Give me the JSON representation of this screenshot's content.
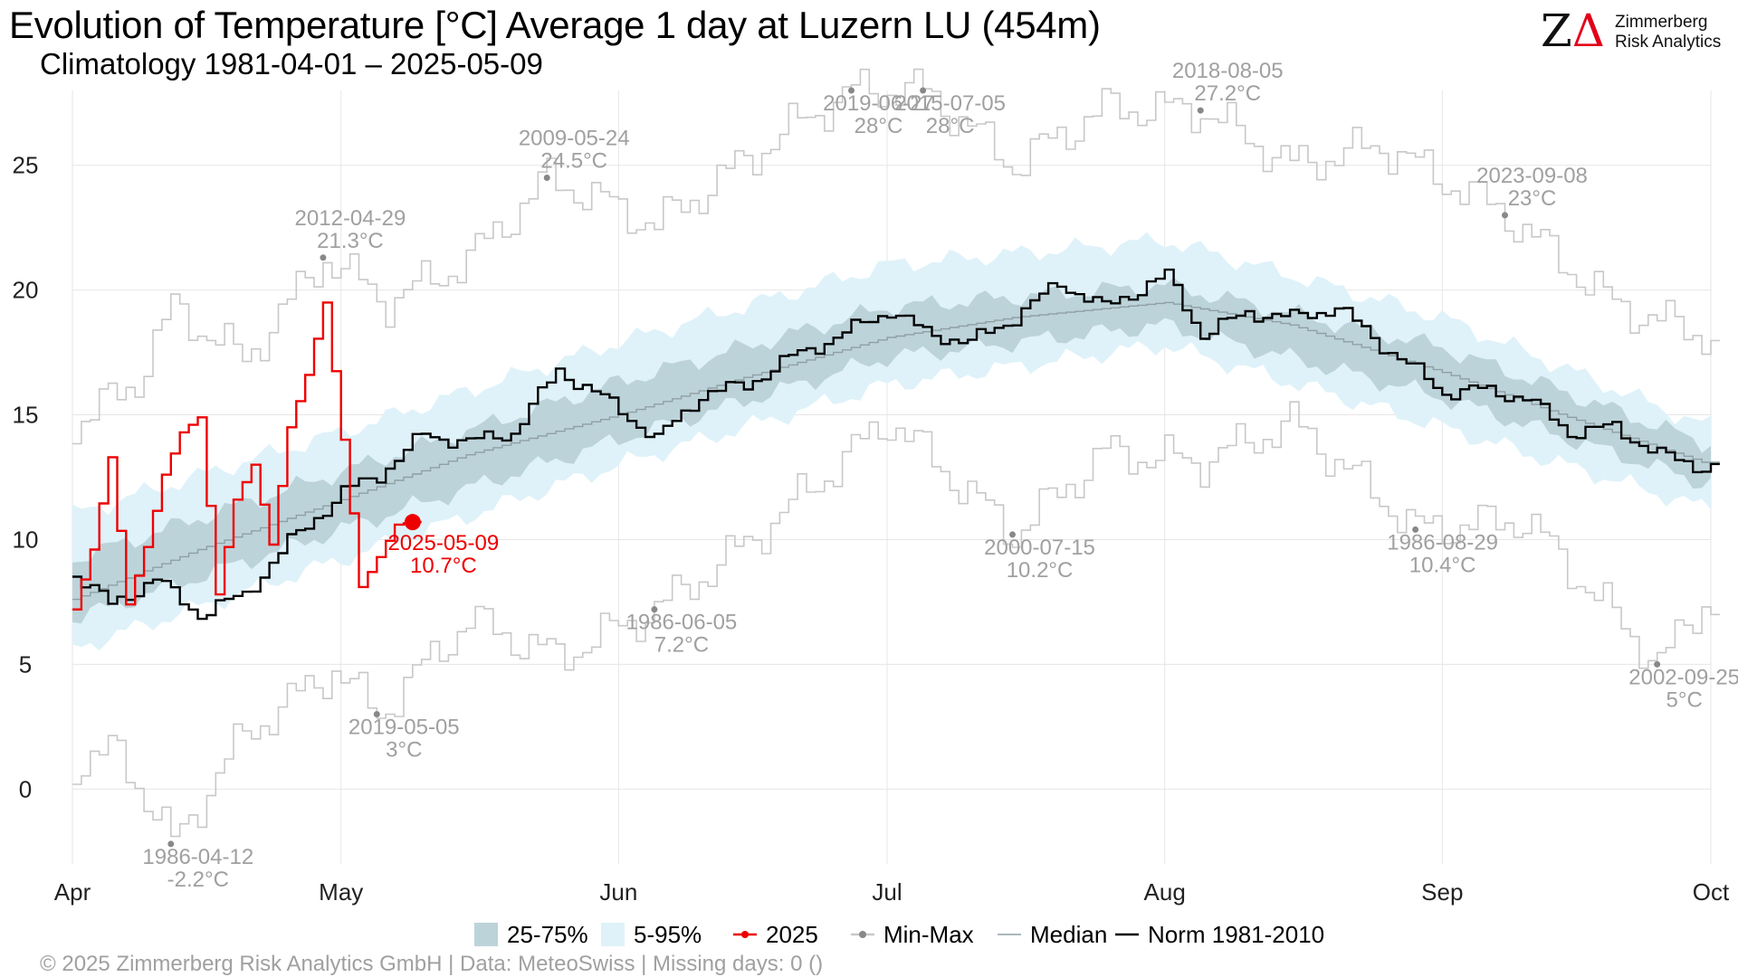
{
  "header": {
    "title": "Evolution of Temperature [°C] Average 1 day at Luzern  LU (454m)",
    "subtitle": "Climatology 1981-04-01 – 2025-05-09"
  },
  "logo": {
    "line1": "Zimmerberg",
    "line2": "Risk Analytics"
  },
  "footer": "©  2025 Zimmerberg Risk Analytics GmbH | Data: MeteoSwiss | Missing days: 0 ()",
  "legend": [
    {
      "key": "band50",
      "label": "25-75%"
    },
    {
      "key": "band90",
      "label": "5-95%"
    },
    {
      "key": "current",
      "label": "2025"
    },
    {
      "key": "minmax",
      "label": "Min-Max"
    },
    {
      "key": "median",
      "label": "Median"
    },
    {
      "key": "norm",
      "label": "Norm 1981-2010"
    }
  ],
  "colors": {
    "band50": "#bdd3da",
    "band90": "#dff2f9",
    "current": "#ee0000",
    "minmax": "#c8c8c8",
    "median": "#8fa0a4",
    "norm": "#000000",
    "annotation": "#a0a0a0",
    "grid": "#e6e6e6"
  },
  "chart_data": {
    "type": "line",
    "x_start": "2025-04-01",
    "xlim": [
      "2025-04-01",
      "2025-09-30"
    ],
    "ylim": [
      -3,
      28
    ],
    "y_ticks": [
      0,
      5,
      10,
      15,
      20,
      25
    ],
    "x_ticks": [
      {
        "date": "2025-04-01",
        "label": "Apr"
      },
      {
        "date": "2025-05-01",
        "label": "May"
      },
      {
        "date": "2025-06-01",
        "label": "Jun"
      },
      {
        "date": "2025-07-01",
        "label": "Jul"
      },
      {
        "date": "2025-08-01",
        "label": "Aug"
      },
      {
        "date": "2025-09-01",
        "label": "Sep"
      },
      {
        "date": "2025-10-01",
        "label": "Oct"
      }
    ],
    "series": [
      {
        "name": "Median",
        "x": [
          "2025-04-01",
          "2025-04-15",
          "2025-05-01",
          "2025-05-15",
          "2025-06-01",
          "2025-06-15",
          "2025-07-01",
          "2025-07-15",
          "2025-08-01",
          "2025-08-15",
          "2025-09-01",
          "2025-09-15",
          "2025-09-30"
        ],
        "y": [
          7.6,
          9.6,
          11.6,
          13.4,
          15.0,
          16.5,
          18.1,
          18.9,
          19.5,
          18.6,
          16.7,
          14.9,
          13.1
        ]
      },
      {
        "name": "Norm 1981-2010",
        "x": [
          "2025-04-01",
          "2025-04-05",
          "2025-04-10",
          "2025-04-15",
          "2025-04-20",
          "2025-04-25",
          "2025-05-01",
          "2025-05-05",
          "2025-05-10",
          "2025-05-15",
          "2025-05-20",
          "2025-05-25",
          "2025-06-01",
          "2025-06-05",
          "2025-06-10",
          "2025-06-15",
          "2025-06-20",
          "2025-06-25",
          "2025-07-01",
          "2025-07-05",
          "2025-07-10",
          "2025-07-15",
          "2025-07-20",
          "2025-07-25",
          "2025-08-01",
          "2025-08-05",
          "2025-08-10",
          "2025-08-15",
          "2025-08-20",
          "2025-08-25",
          "2025-09-01",
          "2025-09-05",
          "2025-09-10",
          "2025-09-15",
          "2025-09-20",
          "2025-09-25",
          "2025-09-30"
        ],
        "y": [
          8.6,
          7.4,
          8.4,
          7.0,
          7.8,
          9.9,
          11.9,
          12.6,
          14.2,
          13.9,
          14.3,
          16.8,
          15.2,
          14.0,
          15.8,
          16.2,
          17.3,
          18.1,
          19.2,
          18.3,
          17.9,
          18.9,
          20.3,
          19.3,
          20.6,
          18.2,
          19.1,
          18.9,
          19.3,
          17.8,
          15.9,
          16.0,
          15.7,
          14.3,
          14.5,
          13.4,
          12.9
        ]
      },
      {
        "name": "2025",
        "x": [
          "2025-04-01",
          "2025-04-03",
          "2025-04-05",
          "2025-04-07",
          "2025-04-09",
          "2025-04-11",
          "2025-04-13",
          "2025-04-15",
          "2025-04-17",
          "2025-04-19",
          "2025-04-21",
          "2025-04-23",
          "2025-04-25",
          "2025-04-27",
          "2025-04-29",
          "2025-05-01",
          "2025-05-03",
          "2025-05-05",
          "2025-05-07",
          "2025-05-09"
        ],
        "y": [
          7.2,
          9.6,
          13.3,
          7.4,
          9.7,
          12.6,
          14.3,
          14.9,
          7.8,
          11.6,
          13.0,
          9.8,
          14.5,
          16.6,
          19.5,
          14.0,
          8.1,
          9.3,
          10.6,
          10.7
        ]
      }
    ],
    "bands": [
      {
        "name": "5-95%",
        "x": [
          "2025-04-01",
          "2025-05-01",
          "2025-06-01",
          "2025-07-01",
          "2025-08-01",
          "2025-09-01",
          "2025-09-30"
        ],
        "low": [
          5.6,
          9.2,
          13.0,
          16.2,
          17.8,
          14.5,
          11.3
        ],
        "high": [
          11.0,
          14.3,
          17.9,
          21.0,
          22.0,
          18.9,
          14.6
        ]
      },
      {
        "name": "25-75%",
        "x": [
          "2025-04-01",
          "2025-05-01",
          "2025-06-01",
          "2025-07-01",
          "2025-08-01",
          "2025-09-01",
          "2025-09-30"
        ],
        "low": [
          6.8,
          10.4,
          14.0,
          17.3,
          18.6,
          15.7,
          12.3
        ],
        "high": [
          9.2,
          12.7,
          16.3,
          19.3,
          20.2,
          17.7,
          13.9
        ]
      }
    ],
    "minmax": {
      "max_x": [
        "2025-04-01",
        "2025-04-08",
        "2025-04-12",
        "2025-04-20",
        "2025-04-29",
        "2025-05-06",
        "2025-05-15",
        "2025-05-24",
        "2025-06-05",
        "2025-06-20",
        "2025-06-27",
        "2025-07-05",
        "2025-07-15",
        "2025-07-25",
        "2025-08-05",
        "2025-08-15",
        "2025-08-25",
        "2025-09-08",
        "2025-09-20",
        "2025-09-30"
      ],
      "max_y": [
        14.5,
        16.4,
        19.3,
        17.2,
        21.3,
        19.5,
        21.2,
        24.5,
        22.6,
        26.5,
        28.0,
        28.0,
        25.0,
        27.3,
        27.2,
        25.0,
        25.8,
        23.0,
        19.4,
        18.2
      ],
      "min_x": [
        "2025-04-01",
        "2025-04-06",
        "2025-04-12",
        "2025-04-20",
        "2025-04-30",
        "2025-05-05",
        "2025-05-15",
        "2025-05-25",
        "2025-06-05",
        "2025-06-15",
        "2025-07-01",
        "2025-07-15",
        "2025-07-25",
        "2025-08-05",
        "2025-08-15",
        "2025-08-29",
        "2025-09-10",
        "2025-09-25",
        "2025-09-30"
      ],
      "min_y": [
        1.0,
        1.5,
        -2.2,
        2.2,
        4.8,
        3.0,
        6.8,
        5.3,
        7.2,
        9.8,
        14.8,
        10.2,
        13.5,
        13.1,
        14.7,
        10.4,
        10.8,
        5.0,
        7.5
      ]
    },
    "current_point": {
      "x": "2025-05-09",
      "y": 10.7,
      "date_label": "2025-05-09",
      "value_label": "10.7°C"
    },
    "annotations": [
      {
        "x": "2025-04-12",
        "y": -2.2,
        "date": "1986-04-12",
        "value": "-2.2°C",
        "pos": "below"
      },
      {
        "x": "2025-04-29",
        "y": 21.3,
        "date": "2012-04-29",
        "value": "21.3°C",
        "pos": "above"
      },
      {
        "x": "2025-05-05",
        "y": 3.0,
        "date": "2019-05-05",
        "value": "3°C",
        "pos": "below"
      },
      {
        "x": "2025-05-24",
        "y": 24.5,
        "date": "2009-05-24",
        "value": "24.5°C",
        "pos": "above"
      },
      {
        "x": "2025-06-05",
        "y": 7.2,
        "date": "1986-06-05",
        "value": "7.2°C",
        "pos": "below"
      },
      {
        "x": "2025-06-27",
        "y": 28.0,
        "date": "2019-06-27",
        "value": "28°C",
        "pos": "below"
      },
      {
        "x": "2025-07-05",
        "y": 28.0,
        "date": "2015-07-05",
        "value": "28°C",
        "pos": "below"
      },
      {
        "x": "2025-07-15",
        "y": 10.2,
        "date": "2000-07-15",
        "value": "10.2°C",
        "pos": "below"
      },
      {
        "x": "2025-08-05",
        "y": 27.2,
        "date": "2018-08-05",
        "value": "27.2°C",
        "pos": "above"
      },
      {
        "x": "2025-08-29",
        "y": 10.4,
        "date": "1986-08-29",
        "value": "10.4°C",
        "pos": "below"
      },
      {
        "x": "2025-09-08",
        "y": 23.0,
        "date": "2023-09-08",
        "value": "23°C",
        "pos": "above"
      },
      {
        "x": "2025-09-25",
        "y": 5.0,
        "date": "2002-09-25",
        "value": "5°C",
        "pos": "below"
      }
    ]
  }
}
